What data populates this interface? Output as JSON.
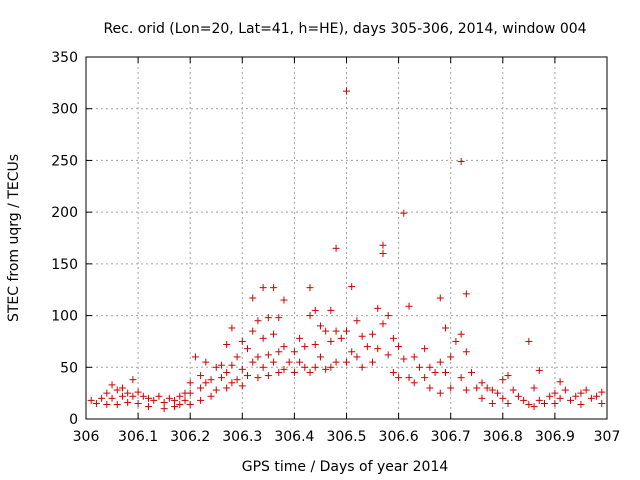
{
  "chart_data": {
    "type": "scatter",
    "title": "Rec. orid (Lon=20, Lat=41, h=HE), days 305-306, 2014, window 004",
    "xlabel": "GPS time / Days of year 2014",
    "ylabel": "STEC from uqrg / TECUs",
    "xlim": [
      306,
      307
    ],
    "ylim": [
      0,
      350
    ],
    "x_ticks": [
      306,
      306.1,
      306.2,
      306.3,
      306.4,
      306.5,
      306.6,
      306.7,
      306.8,
      306.9,
      307
    ],
    "x_tick_labels": [
      "306",
      "306.1",
      "306.2",
      "306.3",
      "306.4",
      "306.5",
      "306.6",
      "306.7",
      "306.8",
      "306.9",
      "307"
    ],
    "y_ticks": [
      0,
      50,
      100,
      150,
      200,
      250,
      300,
      350
    ],
    "y_tick_labels": [
      "0",
      "50",
      "100",
      "150",
      "200",
      "250",
      "300",
      "350"
    ],
    "grid": true,
    "marker": "+",
    "color": "#d00000",
    "series": [
      {
        "points": [
          [
            306.01,
            18
          ],
          [
            306.02,
            15
          ],
          [
            306.03,
            20
          ],
          [
            306.04,
            25
          ],
          [
            306.04,
            14
          ],
          [
            306.05,
            33
          ],
          [
            306.05,
            20
          ],
          [
            306.06,
            28
          ],
          [
            306.06,
            14
          ],
          [
            306.07,
            30
          ],
          [
            306.07,
            22
          ],
          [
            306.08,
            25
          ],
          [
            306.08,
            16
          ],
          [
            306.09,
            38
          ],
          [
            306.09,
            22
          ],
          [
            306.1,
            26
          ],
          [
            306.1,
            15
          ],
          [
            306.11,
            22
          ],
          [
            306.12,
            20
          ],
          [
            306.12,
            12
          ],
          [
            306.13,
            18
          ],
          [
            306.14,
            22
          ],
          [
            306.15,
            16
          ],
          [
            306.15,
            10
          ],
          [
            306.16,
            20
          ],
          [
            306.17,
            18
          ],
          [
            306.17,
            12
          ],
          [
            306.18,
            22
          ],
          [
            306.18,
            14
          ],
          [
            306.19,
            25
          ],
          [
            306.19,
            18
          ],
          [
            306.2,
            35
          ],
          [
            306.2,
            25
          ],
          [
            306.2,
            14
          ],
          [
            306.21,
            60
          ],
          [
            306.22,
            42
          ],
          [
            306.22,
            30
          ],
          [
            306.22,
            18
          ],
          [
            306.23,
            55
          ],
          [
            306.23,
            35
          ],
          [
            306.24,
            38
          ],
          [
            306.24,
            22
          ],
          [
            306.25,
            50
          ],
          [
            306.25,
            28
          ],
          [
            306.26,
            52
          ],
          [
            306.26,
            40
          ],
          [
            306.27,
            72
          ],
          [
            306.27,
            45
          ],
          [
            306.27,
            30
          ],
          [
            306.28,
            88
          ],
          [
            306.28,
            52
          ],
          [
            306.28,
            35
          ],
          [
            306.29,
            60
          ],
          [
            306.29,
            38
          ],
          [
            306.3,
            75
          ],
          [
            306.3,
            48
          ],
          [
            306.3,
            32
          ],
          [
            306.31,
            68
          ],
          [
            306.31,
            42
          ],
          [
            306.32,
            117
          ],
          [
            306.32,
            85
          ],
          [
            306.32,
            55
          ],
          [
            306.33,
            95
          ],
          [
            306.33,
            60
          ],
          [
            306.33,
            40
          ],
          [
            306.34,
            127
          ],
          [
            306.34,
            78
          ],
          [
            306.34,
            50
          ],
          [
            306.35,
            98
          ],
          [
            306.35,
            62
          ],
          [
            306.35,
            42
          ],
          [
            306.36,
            127
          ],
          [
            306.36,
            82
          ],
          [
            306.36,
            55
          ],
          [
            306.37,
            98
          ],
          [
            306.37,
            65
          ],
          [
            306.37,
            45
          ],
          [
            306.38,
            115
          ],
          [
            306.38,
            70
          ],
          [
            306.38,
            48
          ],
          [
            306.39,
            55
          ],
          [
            306.4,
            65
          ],
          [
            306.4,
            45
          ],
          [
            306.41,
            78
          ],
          [
            306.41,
            55
          ],
          [
            306.42,
            70
          ],
          [
            306.42,
            50
          ],
          [
            306.43,
            127
          ],
          [
            306.43,
            100
          ],
          [
            306.43,
            45
          ],
          [
            306.44,
            105
          ],
          [
            306.44,
            72
          ],
          [
            306.44,
            50
          ],
          [
            306.45,
            90
          ],
          [
            306.45,
            60
          ],
          [
            306.46,
            85
          ],
          [
            306.46,
            48
          ],
          [
            306.47,
            105
          ],
          [
            306.47,
            75
          ],
          [
            306.47,
            50
          ],
          [
            306.48,
            165
          ],
          [
            306.48,
            85
          ],
          [
            306.48,
            55
          ],
          [
            306.49,
            78
          ],
          [
            306.5,
            317
          ],
          [
            306.5,
            85
          ],
          [
            306.5,
            55
          ],
          [
            306.51,
            128
          ],
          [
            306.51,
            65
          ],
          [
            306.52,
            95
          ],
          [
            306.52,
            60
          ],
          [
            306.53,
            80
          ],
          [
            306.53,
            50
          ],
          [
            306.54,
            70
          ],
          [
            306.55,
            82
          ],
          [
            306.55,
            55
          ],
          [
            306.56,
            107
          ],
          [
            306.56,
            68
          ],
          [
            306.57,
            168
          ],
          [
            306.57,
            160
          ],
          [
            306.57,
            92
          ],
          [
            306.58,
            100
          ],
          [
            306.58,
            62
          ],
          [
            306.59,
            78
          ],
          [
            306.59,
            45
          ],
          [
            306.6,
            70
          ],
          [
            306.6,
            40
          ],
          [
            306.61,
            199
          ],
          [
            306.61,
            58
          ],
          [
            306.62,
            109
          ],
          [
            306.62,
            40
          ],
          [
            306.63,
            60
          ],
          [
            306.63,
            35
          ],
          [
            306.64,
            50
          ],
          [
            306.65,
            68
          ],
          [
            306.65,
            40
          ],
          [
            306.66,
            50
          ],
          [
            306.66,
            30
          ],
          [
            306.67,
            45
          ],
          [
            306.68,
            117
          ],
          [
            306.68,
            55
          ],
          [
            306.68,
            25
          ],
          [
            306.69,
            88
          ],
          [
            306.69,
            45
          ],
          [
            306.7,
            60
          ],
          [
            306.7,
            30
          ],
          [
            306.71,
            75
          ],
          [
            306.72,
            249
          ],
          [
            306.72,
            82
          ],
          [
            306.72,
            40
          ],
          [
            306.73,
            121
          ],
          [
            306.73,
            65
          ],
          [
            306.73,
            28
          ],
          [
            306.74,
            45
          ],
          [
            306.75,
            30
          ],
          [
            306.76,
            35
          ],
          [
            306.76,
            20
          ],
          [
            306.77,
            30
          ],
          [
            306.78,
            28
          ],
          [
            306.78,
            15
          ],
          [
            306.79,
            25
          ],
          [
            306.8,
            38
          ],
          [
            306.8,
            20
          ],
          [
            306.81,
            42
          ],
          [
            306.81,
            15
          ],
          [
            306.82,
            28
          ],
          [
            306.83,
            22
          ],
          [
            306.84,
            18
          ],
          [
            306.85,
            75
          ],
          [
            306.85,
            14
          ],
          [
            306.86,
            30
          ],
          [
            306.86,
            12
          ],
          [
            306.87,
            47
          ],
          [
            306.87,
            18
          ],
          [
            306.88,
            15
          ],
          [
            306.89,
            22
          ],
          [
            306.9,
            25
          ],
          [
            306.9,
            15
          ],
          [
            306.91,
            36
          ],
          [
            306.91,
            20
          ],
          [
            306.92,
            28
          ],
          [
            306.93,
            18
          ],
          [
            306.94,
            22
          ],
          [
            306.95,
            25
          ],
          [
            306.95,
            14
          ],
          [
            306.96,
            28
          ],
          [
            306.97,
            20
          ],
          [
            306.98,
            22
          ],
          [
            306.99,
            26
          ],
          [
            306.99,
            15
          ]
        ]
      }
    ]
  }
}
